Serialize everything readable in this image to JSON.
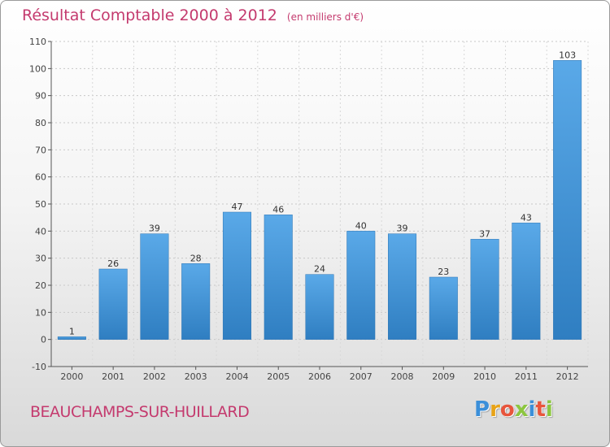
{
  "header": {
    "title": "Résultat Comptable 2000 à 2012",
    "unit": "(en milliers d'€)"
  },
  "footer": {
    "commune": "BEAUCHAMPS-SUR-HUILLARD",
    "logo_text": "Proxiti",
    "logo_colors": [
      "#3b8fd9",
      "#e8a317",
      "#e8553c",
      "#8cc63f",
      "#3b8fd9",
      "#e8553c",
      "#8cc63f"
    ]
  },
  "chart_data": {
    "type": "bar",
    "categories": [
      "2000",
      "2001",
      "2002",
      "2003",
      "2004",
      "2005",
      "2006",
      "2007",
      "2008",
      "2009",
      "2010",
      "2011",
      "2012"
    ],
    "values": [
      1,
      26,
      39,
      28,
      47,
      46,
      24,
      40,
      39,
      23,
      37,
      43,
      103
    ],
    "data_labels": [
      "1",
      "26",
      "39",
      "28",
      "47",
      "46",
      "24",
      "40",
      "39",
      "23",
      "37",
      "43",
      "103"
    ],
    "title": "Résultat Comptable 2000 à 2012",
    "xlabel": "",
    "ylabel": "",
    "ylim": [
      -10,
      110
    ],
    "yticks": [
      -10,
      0,
      10,
      20,
      30,
      40,
      50,
      60,
      70,
      80,
      90,
      100,
      110
    ],
    "grid": true,
    "bar_color_top": "#5aa9e8",
    "bar_color_bottom": "#2f7ec1"
  }
}
